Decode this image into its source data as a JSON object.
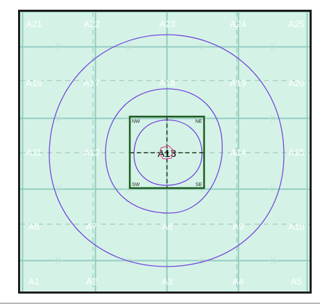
{
  "grid": {
    "rows": [
      [
        "A21",
        "A22",
        "A23",
        "A24",
        "A25"
      ],
      [
        "A16",
        "A17",
        "A18",
        "A19",
        "A20"
      ],
      [
        "A11",
        "A12",
        "A13",
        "A14",
        "A15"
      ],
      [
        "A6",
        "A7",
        "A8",
        "A9",
        "A10"
      ],
      [
        "A1",
        "A2",
        "A3",
        "A4",
        "A5"
      ]
    ],
    "center_cell": "A13"
  },
  "focus_box": {
    "corners": {
      "nw": "NW",
      "ne": "NE",
      "sw": "SW",
      "se": "SE"
    }
  },
  "colors": {
    "background": "#d4f3e6",
    "grid_line": "#93cbc2",
    "dashed_line": "#9ec9bd",
    "contour": "#7446de",
    "focus_box": "#1e5a1e",
    "marker": "#e1569c",
    "label": "#ffffff",
    "frame": "#1d1d1d"
  }
}
